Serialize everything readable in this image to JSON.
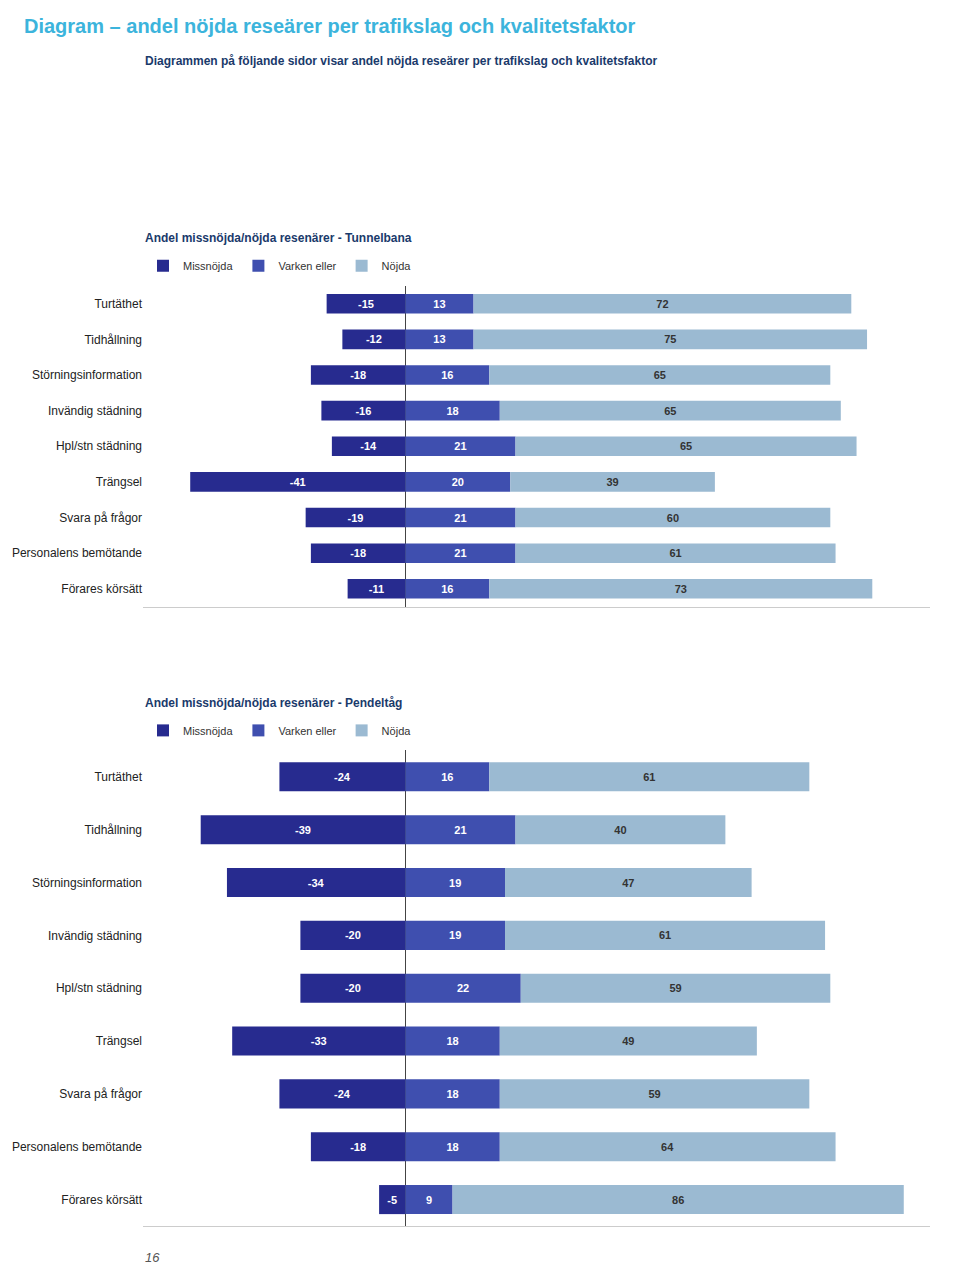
{
  "title": "Diagram – andel nöjda reseärer per trafikslag och kvalitetsfaktor",
  "subtitle": "Diagrammen på följande sidor visar andel nöjda reseärer per trafikslag och kvalitetsfaktor",
  "page_number": "16",
  "chart_data": [
    {
      "type": "bar",
      "orientation": "horizontal",
      "stacked": true,
      "data_labels": true,
      "tick_labels": "y",
      "grid": false,
      "title": "Andel missnöjda/nöjda resenärer - Tunnelbana",
      "categories": [
        "Turtäthet",
        "Tidhållning",
        "Störningsinformation",
        "Invändig städning",
        "Hpl/stn städning",
        "Trängsel",
        "Svara på frågor",
        "Personalens bemötande",
        "Förares körsätt"
      ],
      "series": [
        {
          "name": "Missnöjda",
          "color": "#272B8F",
          "values": [
            -15,
            -12,
            -18,
            -16,
            -14,
            -41,
            -19,
            -18,
            -11
          ]
        },
        {
          "name": "Varken eller",
          "color": "#3F4FAF",
          "values": [
            13,
            13,
            16,
            18,
            21,
            20,
            21,
            21,
            16
          ]
        },
        {
          "name": "Nöjda",
          "color": "#9BBAD2",
          "values": [
            72,
            75,
            65,
            65,
            65,
            39,
            60,
            61,
            73
          ]
        }
      ],
      "xlim": [
        -50,
        100
      ]
    },
    {
      "type": "bar",
      "orientation": "horizontal",
      "stacked": true,
      "data_labels": true,
      "tick_labels": "y",
      "grid": false,
      "title": "Andel missnöjda/nöjda resenärer - Pendeltåg",
      "categories": [
        "Turtäthet",
        "Tidhållning",
        "Störningsinformation",
        "Invändig städning",
        "Hpl/stn städning",
        "Trängsel",
        "Svara på frågor",
        "Personalens bemötande",
        "Förares körsätt"
      ],
      "series": [
        {
          "name": "Missnöjda",
          "color": "#272B8F",
          "values": [
            -24,
            -39,
            -34,
            -20,
            -20,
            -33,
            -24,
            -18,
            -5
          ]
        },
        {
          "name": "Varken eller",
          "color": "#3F4FAF",
          "values": [
            16,
            21,
            19,
            19,
            22,
            18,
            18,
            18,
            9
          ]
        },
        {
          "name": "Nöjda",
          "color": "#9BBAD2",
          "values": [
            61,
            40,
            47,
            61,
            59,
            49,
            59,
            64,
            86
          ]
        }
      ],
      "xlim": [
        -50,
        100
      ]
    }
  ]
}
